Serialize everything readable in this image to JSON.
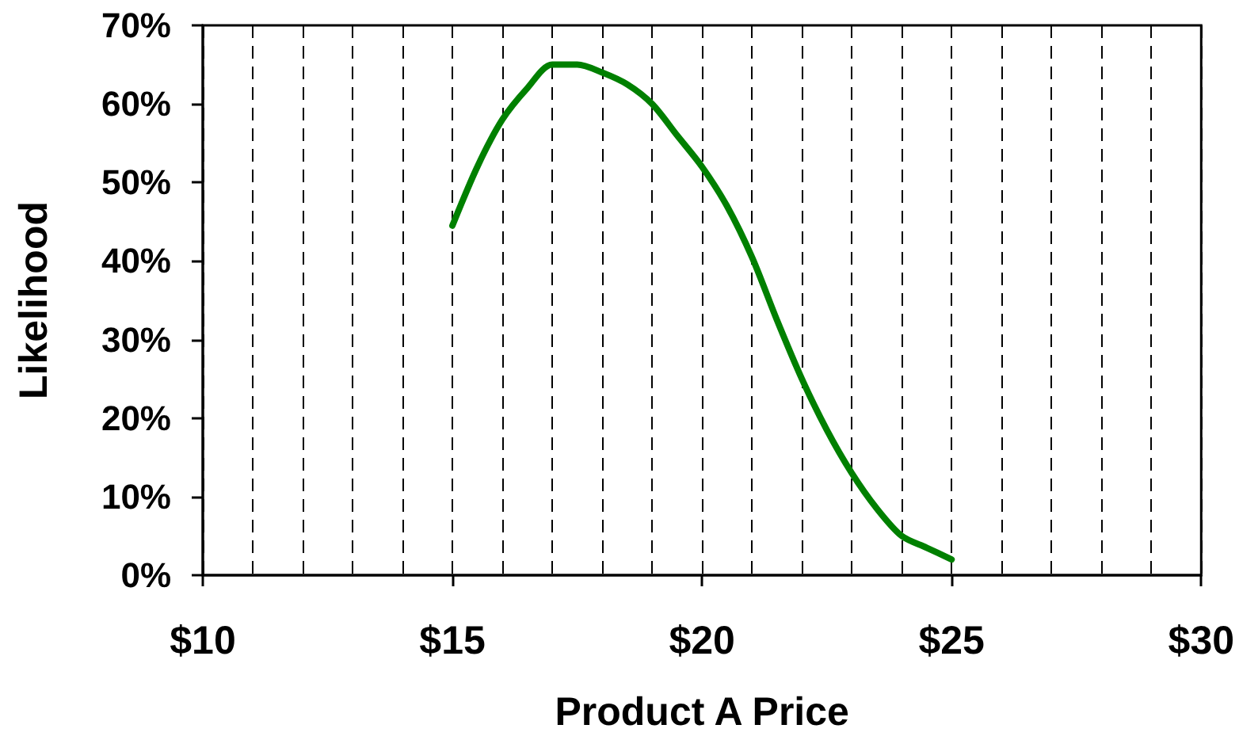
{
  "chart_data": {
    "type": "line",
    "xlabel": "Product A Price",
    "ylabel": "Likelihood",
    "x": [
      15,
      15.5,
      16,
      16.5,
      17,
      17.5,
      18,
      18.5,
      19,
      19.5,
      20,
      20.5,
      21,
      21.5,
      22,
      22.5,
      23,
      23.5,
      24,
      24.5,
      25
    ],
    "series": [
      {
        "color": "#008000",
        "values": [
          44.5,
          52,
          58,
          62,
          65,
          65,
          64,
          62.5,
          60,
          56,
          52,
          47,
          40.5,
          32.5,
          25,
          18.5,
          13,
          8.5,
          5,
          3.5,
          2
        ]
      }
    ],
    "xlim": [
      10,
      30
    ],
    "xticks": [
      {
        "value": 10,
        "label": "$10"
      },
      {
        "value": 11,
        "label": null
      },
      {
        "value": 12,
        "label": null
      },
      {
        "value": 13,
        "label": null
      },
      {
        "value": 14,
        "label": null
      },
      {
        "value": 15,
        "label": "$15"
      },
      {
        "value": 16,
        "label": null
      },
      {
        "value": 17,
        "label": null
      },
      {
        "value": 18,
        "label": null
      },
      {
        "value": 19,
        "label": null
      },
      {
        "value": 20,
        "label": "$20"
      },
      {
        "value": 21,
        "label": null
      },
      {
        "value": 22,
        "label": null
      },
      {
        "value": 23,
        "label": null
      },
      {
        "value": 24,
        "label": null
      },
      {
        "value": 25,
        "label": "$25"
      },
      {
        "value": 26,
        "label": null
      },
      {
        "value": 27,
        "label": null
      },
      {
        "value": 28,
        "label": null
      },
      {
        "value": 29,
        "label": null
      },
      {
        "value": 30,
        "label": "$30"
      }
    ],
    "ylim": [
      0,
      70
    ],
    "yticks": [
      {
        "value": 0,
        "label": "0%"
      },
      {
        "value": 10,
        "label": "10%"
      },
      {
        "value": 20,
        "label": "20%"
      },
      {
        "value": 30,
        "label": "30%"
      },
      {
        "value": 40,
        "label": "40%"
      },
      {
        "value": 50,
        "label": "50%"
      },
      {
        "value": 60,
        "label": "60%"
      },
      {
        "value": 70,
        "label": "70%"
      }
    ],
    "grid": "x",
    "marker": "none",
    "line_style": "solid"
  }
}
